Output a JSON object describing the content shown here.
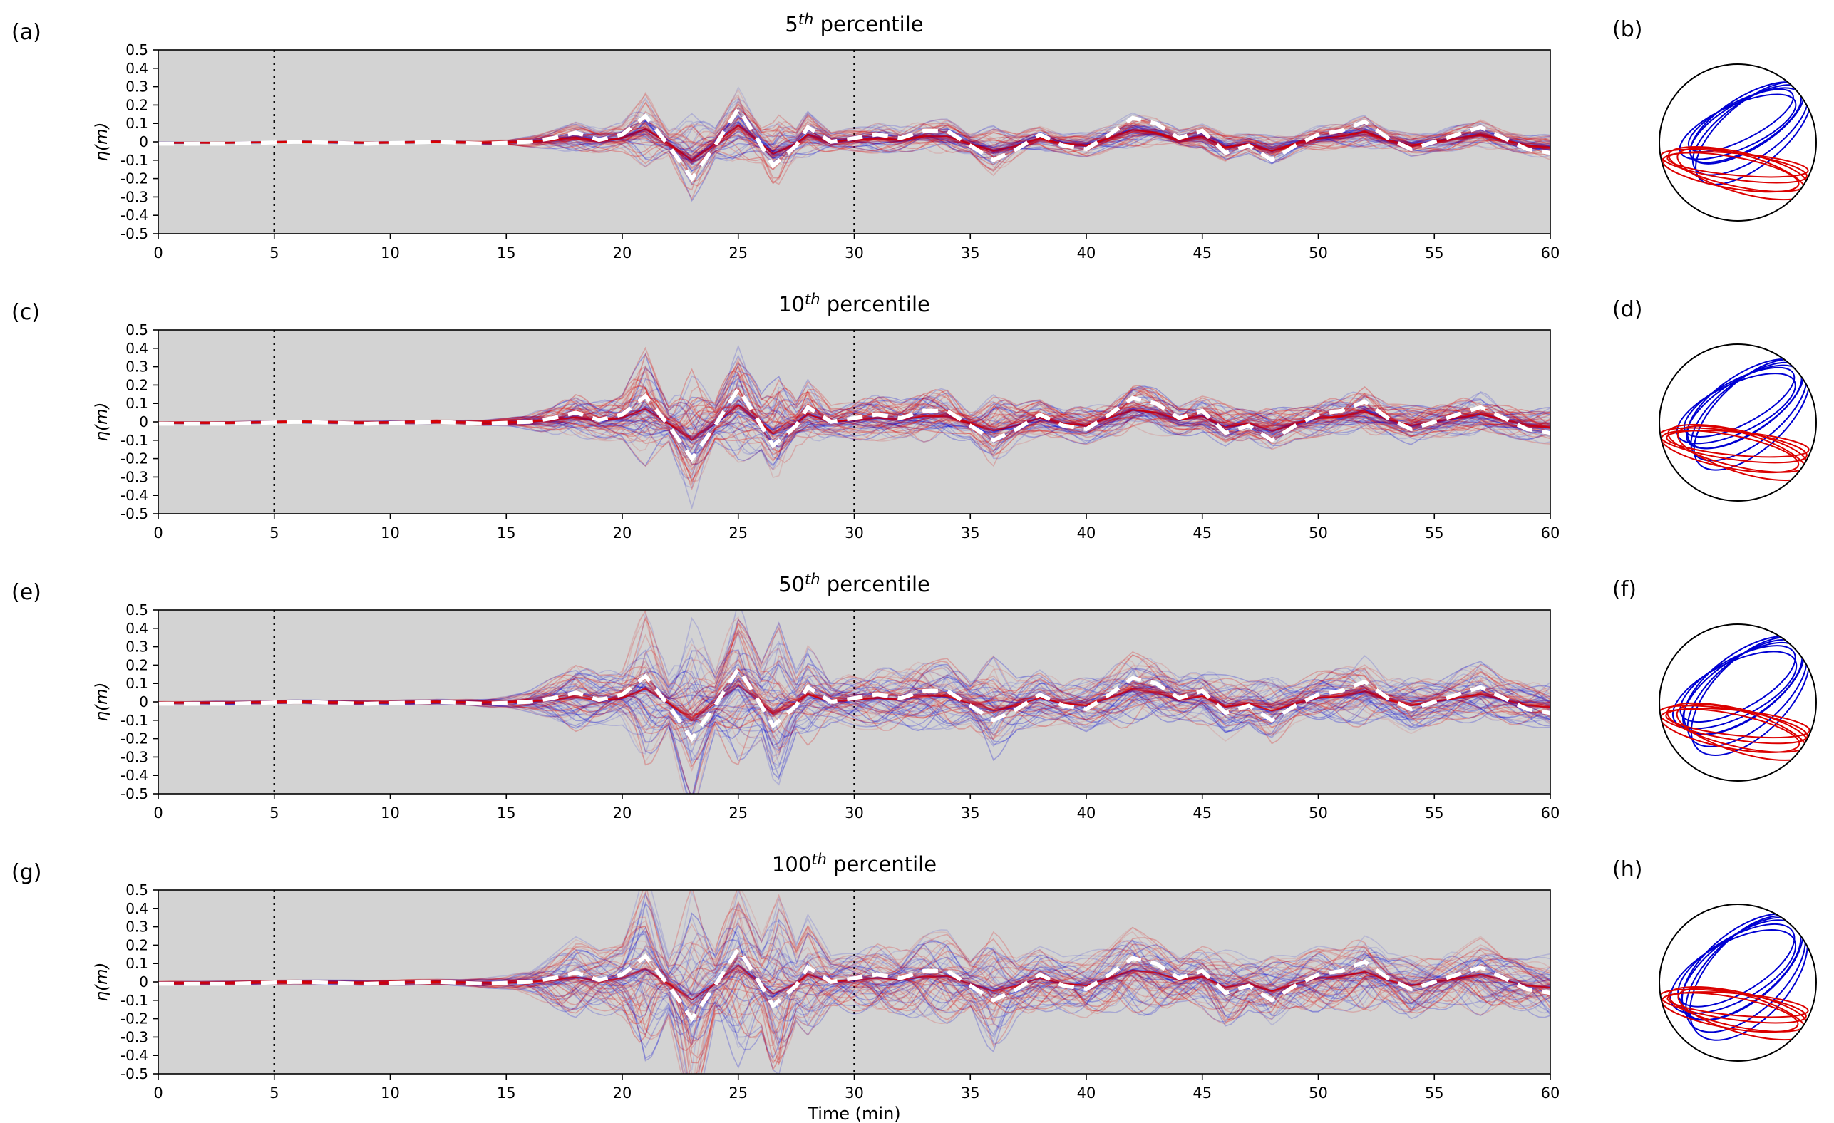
{
  "figure": {
    "description": "Ensemble tsunami wave gauge time series for four percentile levels with corresponding focal-mechanism style circles"
  },
  "chart_data": {
    "type": "line",
    "xlabel": "Time (min)",
    "ylabel": "η(m)",
    "x_range": [
      0,
      60
    ],
    "y_range": [
      -0.5,
      0.5
    ],
    "x_ticks": [
      0,
      5,
      10,
      15,
      20,
      25,
      30,
      35,
      40,
      45,
      50,
      55,
      60
    ],
    "y_ticks": [
      0.5,
      0.4,
      0.3,
      0.2,
      0.1,
      0,
      -0.1,
      -0.2,
      -0.3,
      -0.4,
      -0.5
    ],
    "y_tick_labels": [
      "0.5",
      "0.4",
      "0.3",
      "0.2",
      "0.1",
      "0",
      "-0.1",
      "-0.2",
      "-0.3",
      "-0.4",
      "-0.5"
    ],
    "vlines_dotted_x": [
      5,
      30
    ],
    "plot_bg": "#d3d3d3",
    "grid": false,
    "legend": "none",
    "series_colors": {
      "ensemble_red": "#dc0000",
      "ensemble_blue": "#0000d2",
      "observed": "#ffffff"
    },
    "observed_white_dashed": {
      "x": [
        0,
        3,
        6,
        9,
        12,
        14,
        16,
        17,
        18,
        19,
        20,
        21,
        22,
        23,
        24,
        25,
        25.8,
        26.5,
        27.5,
        28,
        29,
        30,
        31,
        32,
        33,
        34,
        35,
        36,
        37,
        38,
        39,
        40,
        41,
        42,
        43,
        44,
        45,
        46,
        47,
        48,
        49,
        50,
        51,
        52,
        53,
        54,
        55,
        56,
        57,
        58,
        59,
        60
      ],
      "y": [
        -0.01,
        -0.01,
        0,
        -0.01,
        0,
        -0.01,
        0,
        0.02,
        0.05,
        0.01,
        0.04,
        0.14,
        -0.02,
        -0.2,
        -0.02,
        0.18,
        0.02,
        -0.13,
        -0.02,
        0.08,
        0,
        0.02,
        0.04,
        0.02,
        0.06,
        0.06,
        -0.02,
        -0.1,
        -0.04,
        0.04,
        -0.02,
        -0.04,
        0.04,
        0.13,
        0.1,
        0.02,
        0.06,
        -0.06,
        -0.02,
        -0.1,
        -0.02,
        0.04,
        0.06,
        0.11,
        0.02,
        -0.04,
        0,
        0.04,
        0.08,
        0.02,
        -0.04,
        -0.06
      ]
    },
    "ensemble_envelope_base": {
      "x": [
        0,
        10,
        13,
        15,
        16,
        17,
        18,
        19,
        20,
        21,
        22,
        23,
        24,
        25,
        26,
        26.7,
        27.5,
        28,
        29,
        30,
        31,
        32,
        33,
        34,
        35,
        36,
        37,
        38,
        39,
        40,
        41,
        42,
        43,
        44,
        45,
        46,
        47,
        48,
        49,
        50,
        51,
        52,
        53,
        54,
        55,
        56,
        57,
        58,
        59,
        60
      ],
      "y": [
        0.005,
        0.008,
        0.01,
        0.02,
        0.04,
        0.08,
        0.12,
        0.1,
        0.12,
        0.3,
        0.1,
        0.38,
        0.12,
        0.3,
        0.15,
        0.33,
        0.12,
        0.18,
        0.08,
        0.1,
        0.12,
        0.1,
        0.14,
        0.14,
        0.08,
        0.2,
        0.1,
        0.1,
        0.08,
        0.1,
        0.1,
        0.14,
        0.12,
        0.08,
        0.1,
        0.12,
        0.08,
        0.12,
        0.08,
        0.1,
        0.1,
        0.13,
        0.08,
        0.1,
        0.08,
        0.1,
        0.12,
        0.08,
        0.08,
        0.1
      ]
    },
    "panels": [
      {
        "label": "(a)",
        "title": "5th percentile",
        "title_num": "5",
        "title_sup": "th",
        "title_rest": "percentile",
        "amplitude_scale": 0.6,
        "circle_label": "(b)",
        "show_xlabel": false
      },
      {
        "label": "(c)",
        "title": "10th percentile",
        "title_num": "10",
        "title_sup": "th",
        "title_rest": "percentile",
        "amplitude_scale": 0.95,
        "circle_label": "(d)",
        "show_xlabel": false
      },
      {
        "label": "(e)",
        "title": "50th percentile",
        "title_num": "50",
        "title_sup": "th",
        "title_rest": "percentile",
        "amplitude_scale": 1.3,
        "circle_label": "(f)",
        "show_xlabel": false
      },
      {
        "label": "(g)",
        "title": "100th percentile",
        "title_num": "100",
        "title_sup": "th",
        "title_rest": "percentile",
        "amplitude_scale": 1.55,
        "circle_label": "(h)",
        "show_xlabel": true
      }
    ],
    "focal_circles": [
      {
        "label": "(b)",
        "blue": [
          [
            0.1,
            -0.22,
            0.8,
            0.3,
            -30
          ],
          [
            0.16,
            -0.16,
            0.86,
            0.36,
            -35
          ],
          [
            0.04,
            -0.28,
            0.74,
            0.24,
            -27
          ],
          [
            0.2,
            -0.12,
            0.9,
            0.4,
            -40
          ],
          [
            0.0,
            -0.2,
            0.8,
            0.28,
            -24
          ],
          [
            0.12,
            -0.25,
            0.83,
            0.33,
            -32
          ]
        ],
        "red": [
          [
            0.0,
            0.34,
            0.9,
            0.22,
            12
          ],
          [
            -0.05,
            0.3,
            0.94,
            0.17,
            8
          ],
          [
            0.05,
            0.4,
            0.85,
            0.24,
            16
          ],
          [
            0.0,
            0.28,
            0.9,
            0.14,
            5
          ],
          [
            -0.09,
            0.38,
            0.88,
            0.2,
            10
          ]
        ]
      },
      {
        "label": "(d)",
        "blue": [
          [
            0.08,
            -0.2,
            0.84,
            0.34,
            -32
          ],
          [
            0.14,
            -0.14,
            0.88,
            0.4,
            -38
          ],
          [
            0.02,
            -0.26,
            0.78,
            0.28,
            -28
          ],
          [
            0.18,
            -0.1,
            0.92,
            0.44,
            -43
          ],
          [
            -0.02,
            -0.18,
            0.82,
            0.31,
            -25
          ],
          [
            0.1,
            -0.24,
            0.86,
            0.37,
            -34
          ]
        ],
        "red": [
          [
            0.0,
            0.33,
            0.91,
            0.23,
            13
          ],
          [
            -0.06,
            0.29,
            0.95,
            0.18,
            8
          ],
          [
            0.06,
            0.39,
            0.86,
            0.25,
            17
          ],
          [
            0.0,
            0.27,
            0.91,
            0.15,
            5
          ],
          [
            -0.1,
            0.37,
            0.89,
            0.21,
            11
          ]
        ]
      },
      {
        "label": "(f)",
        "blue": [
          [
            0.06,
            -0.18,
            0.88,
            0.38,
            -34
          ],
          [
            0.12,
            -0.12,
            0.92,
            0.44,
            -40
          ],
          [
            0.0,
            -0.24,
            0.82,
            0.32,
            -29
          ],
          [
            0.16,
            -0.08,
            0.95,
            0.48,
            -45
          ],
          [
            -0.04,
            -0.16,
            0.86,
            0.35,
            -26
          ],
          [
            0.08,
            -0.22,
            0.9,
            0.41,
            -36
          ]
        ],
        "red": [
          [
            0.0,
            0.32,
            0.92,
            0.24,
            13
          ],
          [
            -0.06,
            0.28,
            0.96,
            0.19,
            9
          ],
          [
            0.06,
            0.38,
            0.87,
            0.26,
            17
          ],
          [
            0.0,
            0.26,
            0.92,
            0.16,
            6
          ],
          [
            -0.1,
            0.36,
            0.9,
            0.22,
            11
          ]
        ]
      },
      {
        "label": "(h)",
        "blue": [
          [
            0.04,
            -0.16,
            0.9,
            0.42,
            -37
          ],
          [
            0.1,
            -0.1,
            0.94,
            0.48,
            -43
          ],
          [
            -0.02,
            -0.22,
            0.84,
            0.35,
            -31
          ],
          [
            0.14,
            -0.06,
            0.96,
            0.52,
            -48
          ],
          [
            -0.06,
            -0.14,
            0.88,
            0.38,
            -28
          ],
          [
            0.06,
            -0.2,
            0.92,
            0.45,
            -39
          ]
        ],
        "red": [
          [
            0.0,
            0.34,
            0.9,
            0.22,
            12
          ],
          [
            -0.06,
            0.3,
            0.94,
            0.17,
            8
          ],
          [
            0.06,
            0.4,
            0.85,
            0.24,
            16
          ],
          [
            0.0,
            0.28,
            0.9,
            0.14,
            5
          ],
          [
            -0.1,
            0.38,
            0.88,
            0.2,
            10
          ]
        ]
      }
    ]
  }
}
